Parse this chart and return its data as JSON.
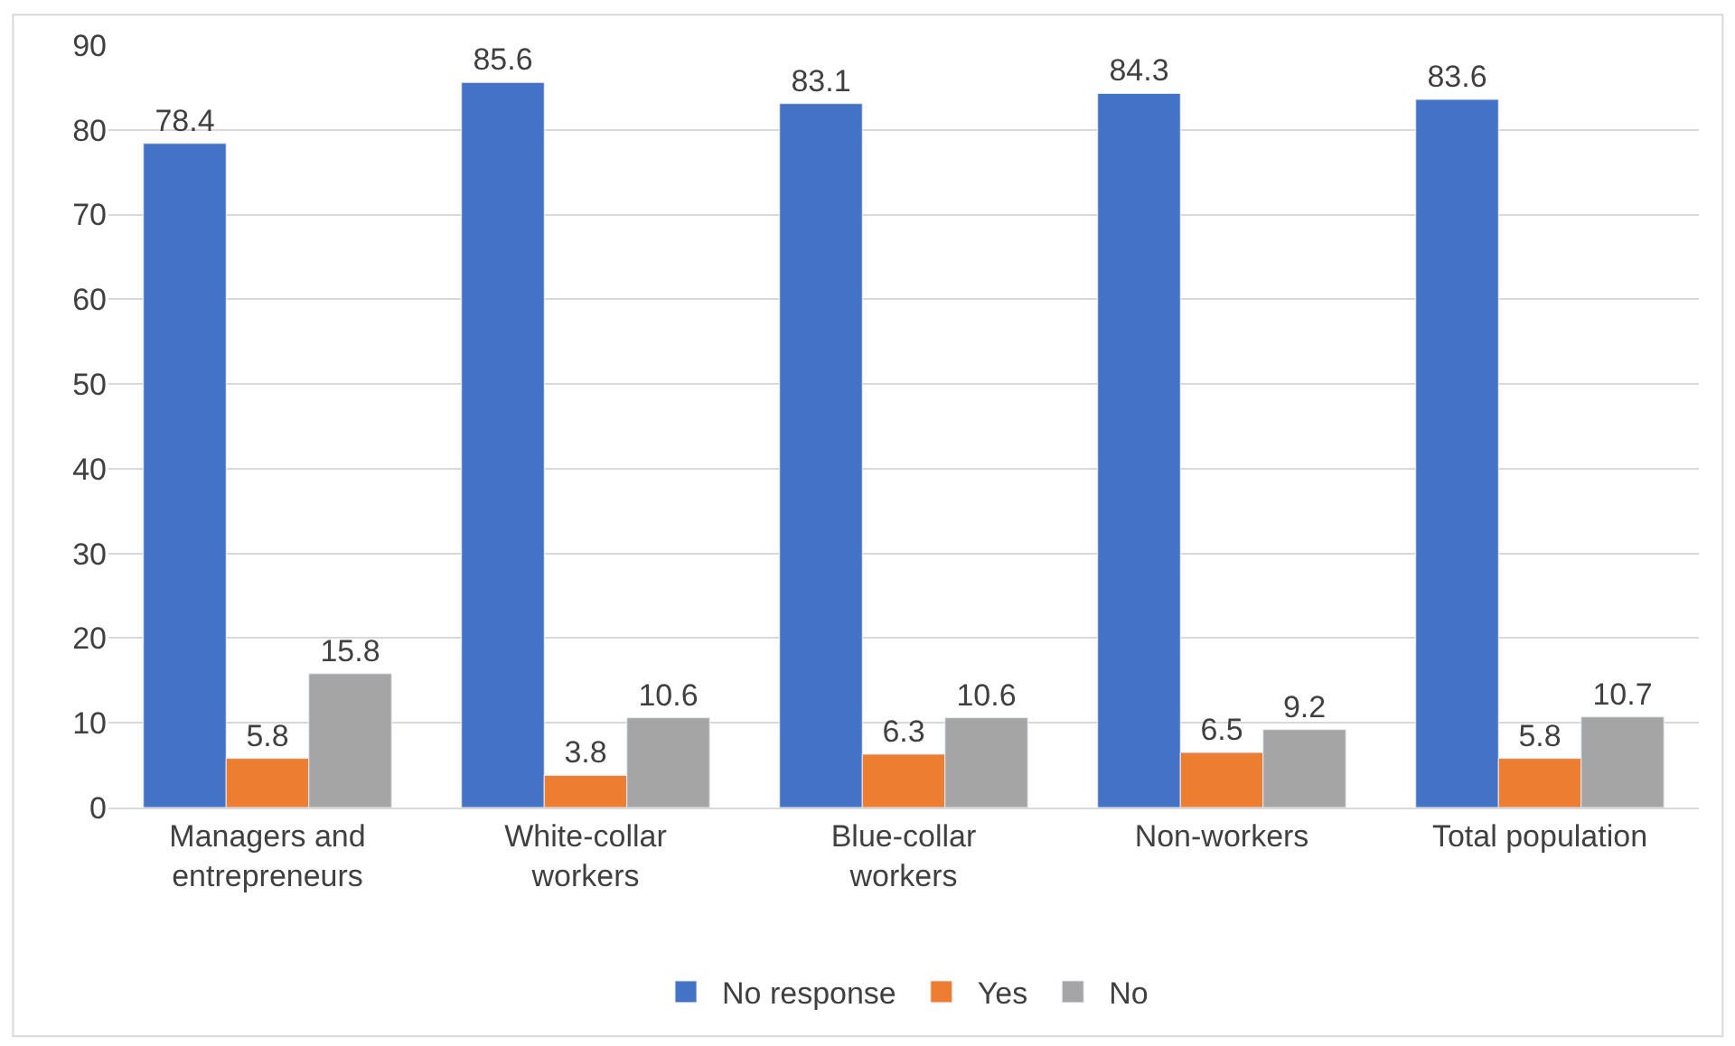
{
  "chart_data": {
    "type": "bar",
    "categories": [
      "Managers and\nentrepreneurs",
      "White-collar\nworkers",
      "Blue-collar\nworkers",
      "Non-workers",
      "Total population"
    ],
    "series": [
      {
        "name": "No response",
        "color": "#4472c4",
        "values": [
          78.4,
          85.6,
          83.1,
          84.3,
          83.6
        ]
      },
      {
        "name": "Yes",
        "color": "#ed7d31",
        "values": [
          5.8,
          3.8,
          6.3,
          6.5,
          5.8
        ]
      },
      {
        "name": "No",
        "color": "#a5a5a5",
        "values": [
          15.8,
          10.6,
          10.6,
          9.2,
          10.7
        ]
      }
    ],
    "ylim": [
      0,
      90
    ],
    "yticks": [
      0,
      10,
      20,
      30,
      40,
      50,
      60,
      70,
      80,
      90
    ],
    "grid": "y",
    "legend": "bottom",
    "data_labels": true
  }
}
